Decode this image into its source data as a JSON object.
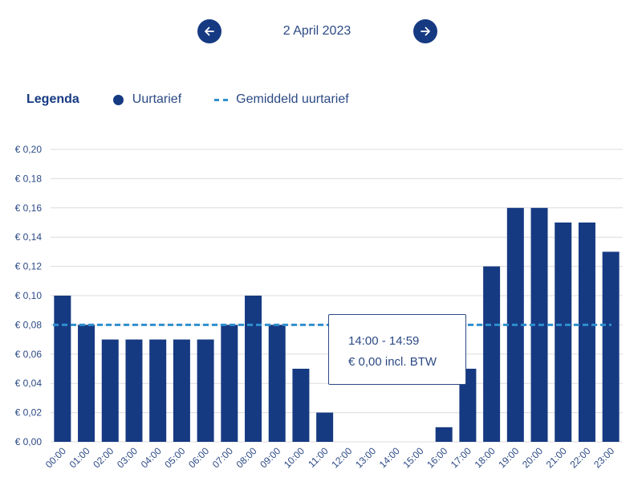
{
  "date_nav": {
    "date": "2 April 2023",
    "prev_icon": "arrow-left-icon",
    "next_icon": "arrow-right-icon"
  },
  "legend": {
    "title": "Legenda",
    "series_label": "Uurtarief",
    "average_label": "Gemiddeld uurtarief"
  },
  "tooltip": {
    "time": "14:00 - 14:59",
    "value": "€ 0,00 incl. BTW"
  },
  "colors": {
    "bar": "#163a82",
    "average_line": "#2e8fce",
    "grid": "#dcdcdc",
    "text": "#2c4a85"
  },
  "chart_data": {
    "type": "bar",
    "categories": [
      "00:00",
      "01:00",
      "02:00",
      "03:00",
      "04:00",
      "05:00",
      "06:00",
      "07:00",
      "08:00",
      "09:00",
      "10:00",
      "11:00",
      "12:00",
      "13:00",
      "14:00",
      "15:00",
      "16:00",
      "17:00",
      "18:00",
      "19:00",
      "20:00",
      "21:00",
      "22:00",
      "23:00"
    ],
    "series": [
      {
        "name": "Uurtarief",
        "values": [
          0.1,
          0.08,
          0.07,
          0.07,
          0.07,
          0.07,
          0.07,
          0.08,
          0.1,
          0.08,
          0.05,
          0.02,
          0.0,
          0.0,
          0.0,
          0.0,
          0.01,
          0.05,
          0.12,
          0.16,
          0.16,
          0.15,
          0.15,
          0.13
        ]
      }
    ],
    "average": {
      "name": "Gemiddeld uurtarief",
      "value": 0.08
    },
    "ylim": [
      0,
      0.2
    ],
    "yticks": [
      0.0,
      0.02,
      0.04,
      0.06,
      0.08,
      0.1,
      0.12,
      0.14,
      0.16,
      0.18,
      0.2
    ],
    "ytick_labels": [
      "€ 0,00",
      "€ 0,02",
      "€ 0,04",
      "€ 0,06",
      "€ 0,08",
      "€ 0,10",
      "€ 0,12",
      "€ 0,14",
      "€ 0,16",
      "€ 0,18",
      "€ 0,20"
    ],
    "grid": true,
    "legend_position": "top-left"
  }
}
